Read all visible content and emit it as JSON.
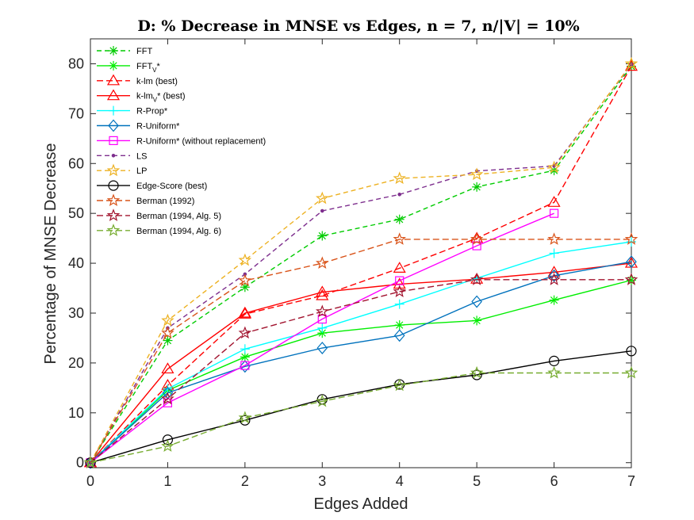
{
  "chart_data": {
    "type": "line",
    "title": "D: % Decrease in MNSE vs Edges, n = 7, n/|V| = 10%",
    "xlabel": "Edges Added",
    "ylabel": "Percentage of MNSE Decrease",
    "xlim": [
      0,
      7
    ],
    "ylim": [
      -1,
      85
    ],
    "xticks": [
      0,
      1,
      2,
      3,
      4,
      5,
      6,
      7
    ],
    "yticks": [
      0,
      10,
      20,
      30,
      40,
      50,
      60,
      70,
      80
    ],
    "grid": false,
    "legend_position": "top-left",
    "series": [
      {
        "name": "FFT",
        "name_sub": "",
        "name_tail": "",
        "color": "#00cc00",
        "dash": "6,4",
        "marker": "asterisk",
        "x": [
          0,
          1,
          2,
          3,
          4,
          5,
          6,
          7
        ],
        "values": [
          0,
          24.5,
          35.2,
          45.5,
          48.8,
          55.3,
          58.6,
          79.5
        ]
      },
      {
        "name": "FFT",
        "name_sub": "V",
        "name_tail": "*",
        "color": "#00ee00",
        "dash": "",
        "marker": "asterisk",
        "x": [
          0,
          1,
          2,
          3,
          4,
          5,
          6,
          7
        ],
        "values": [
          0,
          14.5,
          21.2,
          26.0,
          27.6,
          28.5,
          32.6,
          36.6
        ]
      },
      {
        "name": "k-lm (best)",
        "name_sub": "",
        "name_tail": "",
        "color": "#ff0000",
        "dash": "8,4",
        "marker": "triangle",
        "x": [
          0,
          1,
          2,
          3,
          4,
          5,
          6,
          7
        ],
        "values": [
          0,
          15.5,
          29.8,
          33.5,
          39.0,
          45.0,
          52.2,
          79.5
        ]
      },
      {
        "name": "k-lm",
        "name_sub": "V",
        "name_tail": "* (best)",
        "color": "#ff0000",
        "dash": "",
        "marker": "triangle",
        "x": [
          0,
          1,
          2,
          3,
          4,
          5,
          6,
          7
        ],
        "values": [
          0,
          18.8,
          30.0,
          34.2,
          35.8,
          36.8,
          38.2,
          40.0
        ]
      },
      {
        "name": "R-Prop*",
        "name_sub": "",
        "name_tail": "",
        "color": "#00ffff",
        "dash": "",
        "marker": "plus",
        "x": [
          0,
          1,
          2,
          3,
          4,
          5,
          6,
          7
        ],
        "values": [
          0,
          14.8,
          22.8,
          27.0,
          31.8,
          37.0,
          42.0,
          44.3
        ]
      },
      {
        "name": "R-Uniform*",
        "name_sub": "",
        "name_tail": "",
        "color": "#0072bd",
        "dash": "",
        "marker": "diamond",
        "x": [
          0,
          1,
          2,
          3,
          4,
          5,
          6,
          7
        ],
        "values": [
          0,
          14.0,
          19.3,
          23.0,
          25.5,
          32.3,
          37.5,
          40.3
        ]
      },
      {
        "name": "R-Uniform* (without replacement)",
        "name_sub": "",
        "name_tail": "",
        "color": "#ff00ff",
        "dash": "",
        "marker": "square",
        "x": [
          0,
          1,
          2,
          3,
          4,
          5,
          6
        ],
        "values": [
          0,
          12.0,
          19.5,
          28.8,
          36.5,
          43.5,
          50.0
        ]
      },
      {
        "name": "LS",
        "name_sub": "",
        "name_tail": "",
        "color": "#7e2f8e",
        "dash": "6,4",
        "marker": "dot",
        "x": [
          0,
          1,
          2,
          3,
          4,
          5,
          6,
          7
        ],
        "values": [
          0,
          27.0,
          37.8,
          50.5,
          53.8,
          58.5,
          59.5,
          79.8
        ]
      },
      {
        "name": "LP",
        "name_sub": "",
        "name_tail": "",
        "color": "#edb120",
        "dash": "6,4",
        "marker": "star",
        "x": [
          0,
          1,
          2,
          3,
          4,
          5,
          6,
          7
        ],
        "values": [
          0,
          28.5,
          40.6,
          53.0,
          57.0,
          57.8,
          59.2,
          80.0
        ]
      },
      {
        "name": "Edge-Score (best)",
        "name_sub": "",
        "name_tail": "",
        "color": "#000000",
        "dash": "",
        "marker": "circle",
        "x": [
          0,
          1,
          2,
          3,
          4,
          5,
          6,
          7
        ],
        "values": [
          0,
          4.6,
          8.5,
          12.7,
          15.7,
          17.6,
          20.4,
          22.4
        ]
      },
      {
        "name": "Berman (1992)",
        "name_sub": "",
        "name_tail": "",
        "color": "#d95319",
        "dash": "8,4",
        "marker": "star",
        "x": [
          0,
          1,
          2,
          3,
          4,
          5,
          6,
          7
        ],
        "values": [
          0,
          26.0,
          36.5,
          40.0,
          44.8,
          44.8,
          44.8,
          44.8
        ]
      },
      {
        "name": "Berman (1994, Alg. 5)",
        "name_sub": "",
        "name_tail": "",
        "color": "#a2142f",
        "dash": "8,4",
        "marker": "star",
        "x": [
          0,
          1,
          2,
          3,
          4,
          5,
          6,
          7
        ],
        "values": [
          0,
          12.8,
          26.0,
          30.3,
          34.3,
          36.7,
          36.7,
          36.7
        ]
      },
      {
        "name": "Berman (1994, Alg. 6)",
        "name_sub": "",
        "name_tail": "",
        "color": "#77ac30",
        "dash": "8,4",
        "marker": "star",
        "x": [
          0,
          1,
          2,
          3,
          4,
          5,
          6,
          7
        ],
        "values": [
          0,
          3.3,
          9.0,
          12.3,
          15.5,
          18.0,
          18.0,
          18.0
        ]
      }
    ]
  }
}
